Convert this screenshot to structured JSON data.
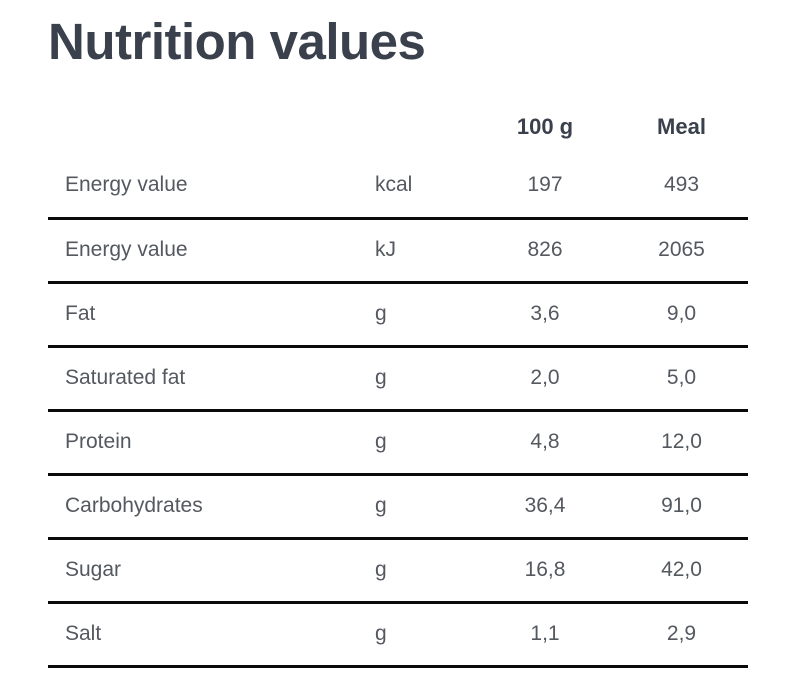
{
  "colors": {
    "ink": "#3a414c",
    "gray": "#54585f",
    "line": "#0a0a0a",
    "bg": "#ffffff"
  },
  "page": {
    "title": "Nutrition values"
  },
  "table": {
    "headers": {
      "label": "",
      "unit": "",
      "per100g": "100 g",
      "meal": "Meal"
    },
    "rows": [
      {
        "label": "Energy value",
        "unit": "kcal",
        "per100g": "197",
        "meal": "493"
      },
      {
        "label": "Energy value",
        "unit": "kJ",
        "per100g": "826",
        "meal": "2065"
      },
      {
        "label": "Fat",
        "unit": "g",
        "per100g": "3,6",
        "meal": "9,0"
      },
      {
        "label": "Saturated fat",
        "unit": "g",
        "per100g": "2,0",
        "meal": "5,0"
      },
      {
        "label": "Protein",
        "unit": "g",
        "per100g": "4,8",
        "meal": "12,0"
      },
      {
        "label": "Carbohydrates",
        "unit": "g",
        "per100g": "36,4",
        "meal": "91,0"
      },
      {
        "label": "Sugar",
        "unit": "g",
        "per100g": "16,8",
        "meal": "42,0"
      },
      {
        "label": "Salt",
        "unit": "g",
        "per100g": "1,1",
        "meal": "2,9"
      }
    ]
  }
}
